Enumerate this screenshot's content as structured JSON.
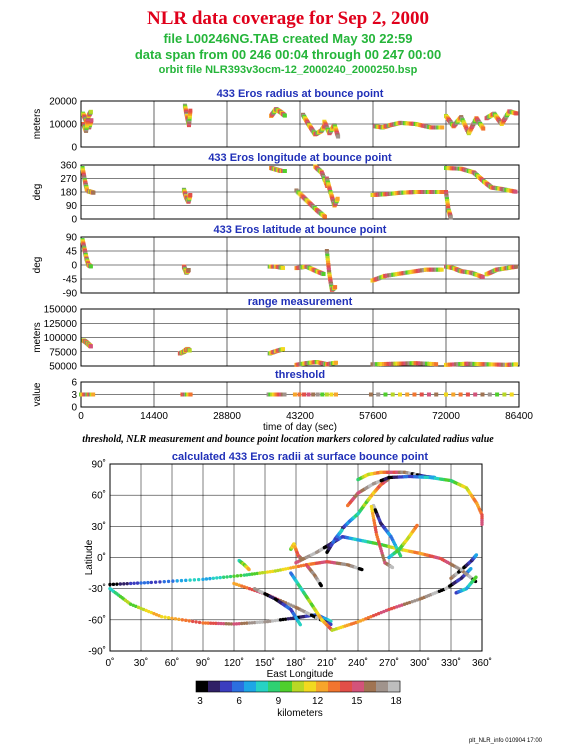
{
  "header": {
    "title": "NLR data coverage for Sep 2, 2000",
    "file_line": "file L00246NG.TAB created May 30 22:59",
    "span_line": "data span from 00 246 00:04 through 00 247 00:00",
    "orbit_line": "orbit file NLR393v3ocm-12_2000240_2000250.bsp"
  },
  "caption": "threshold, NLR measurement and bounce point location markers colored by calculated radius value",
  "footer": "plt_NLR_info 010904 17:00",
  "colors": {
    "title": "#e0001b",
    "subtitle": "#25b53a",
    "panel_title": "#2030b8"
  },
  "chart_data": [
    {
      "type": "scatter",
      "title": "433 Eros radius at bounce point",
      "ylabel": "meters",
      "xlim": [
        0,
        86400
      ],
      "ylim": [
        0,
        20000
      ],
      "yticks": [
        "20000",
        "10000",
        "0"
      ],
      "grid": true,
      "series": [
        {
          "x": [
            400,
            1000,
            1600,
            2100
          ],
          "y": [
            14500,
            11500,
            8500,
            12000
          ]
        },
        {
          "x": [
            500,
            1000,
            1500,
            2000
          ],
          "y": [
            10000,
            7000,
            13500,
            15500
          ]
        },
        {
          "x": [
            20500,
            20900,
            21300,
            21600
          ],
          "y": [
            18000,
            13500,
            9500,
            16500
          ]
        },
        {
          "x": [
            37500,
            38500,
            39500,
            40300
          ],
          "y": [
            13500,
            16500,
            15000,
            13500
          ]
        },
        {
          "x": [
            43800,
            45000,
            46200,
            47400,
            48300
          ],
          "y": [
            14000,
            9500,
            5500,
            7000,
            10000
          ]
        },
        {
          "x": [
            48000,
            49000,
            50000,
            50800
          ],
          "y": [
            11000,
            6000,
            9500,
            4000
          ]
        },
        {
          "x": [
            58000,
            59500,
            61000,
            63000,
            66000,
            69000,
            71500
          ],
          "y": [
            9000,
            8500,
            9500,
            10500,
            10000,
            8500,
            8500
          ]
        },
        {
          "x": [
            72000,
            73500,
            75000,
            76500,
            78000,
            79500
          ],
          "y": [
            13500,
            9000,
            13000,
            6000,
            12500,
            7500
          ]
        },
        {
          "x": [
            80000,
            81500,
            83000,
            84500,
            86000
          ],
          "y": [
            12500,
            14500,
            10000,
            15500,
            14500
          ]
        }
      ]
    },
    {
      "type": "scatter",
      "title": "433 Eros longitude at bounce point",
      "ylabel": "deg",
      "xlim": [
        0,
        86400
      ],
      "ylim": [
        0,
        360
      ],
      "yticks": [
        "360",
        "270",
        "180",
        "90",
        "0"
      ],
      "grid": true,
      "series": [
        {
          "x": [
            300,
            800,
            1200
          ],
          "y": [
            340,
            250,
            190
          ]
        },
        {
          "x": [
            1500,
            2000,
            2500
          ],
          "y": [
            185,
            180,
            175
          ]
        },
        {
          "x": [
            20300,
            20700,
            21200,
            21600
          ],
          "y": [
            195,
            150,
            115,
            165
          ]
        },
        {
          "x": [
            37500,
            38500,
            39500,
            40300
          ],
          "y": [
            340,
            330,
            320,
            320
          ]
        },
        {
          "x": [
            42500,
            44500,
            46500,
            48300
          ],
          "y": [
            190,
            125,
            60,
            10
          ]
        },
        {
          "x": [
            46200,
            47500,
            48700
          ],
          "y": [
            350,
            310,
            210
          ]
        },
        {
          "x": [
            48500,
            49200,
            50000,
            50700
          ],
          "y": [
            270,
            180,
            90,
            140
          ]
        },
        {
          "x": [
            57500,
            60000,
            63000,
            66000,
            69000,
            71500
          ],
          "y": [
            160,
            165,
            175,
            180,
            180,
            180
          ]
        },
        {
          "x": [
            72000,
            72500,
            73000
          ],
          "y": [
            180,
            60,
            5
          ]
        },
        {
          "x": [
            72000,
            75000,
            77500,
            79500,
            81000,
            83000,
            86000
          ],
          "y": [
            340,
            335,
            310,
            250,
            210,
            200,
            180
          ]
        }
      ]
    },
    {
      "type": "scatter",
      "title": "433 Eros latitude at bounce point",
      "ylabel": "deg",
      "xlim": [
        0,
        86400
      ],
      "ylim": [
        -90,
        90
      ],
      "yticks": [
        "90",
        "45",
        "0",
        "-45",
        "-90"
      ],
      "grid": true,
      "series": [
        {
          "x": [
            300,
            700,
            1100,
            1500,
            2000
          ],
          "y": [
            80,
            50,
            20,
            0,
            -5
          ]
        },
        {
          "x": [
            20300,
            20800,
            21300
          ],
          "y": [
            -5,
            -25,
            -15
          ]
        },
        {
          "x": [
            37200,
            38500,
            40000
          ],
          "y": [
            -5,
            -5,
            -10
          ]
        },
        {
          "x": [
            42500,
            44500,
            46500,
            48000
          ],
          "y": [
            -10,
            -5,
            -20,
            -30
          ]
        },
        {
          "x": [
            48500,
            49000,
            49500,
            50200
          ],
          "y": [
            45,
            -30,
            -80,
            -70
          ]
        },
        {
          "x": [
            57500,
            60000,
            64000,
            68000,
            71500
          ],
          "y": [
            -50,
            -35,
            -25,
            -15,
            -15
          ]
        },
        {
          "x": [
            72000,
            73500,
            75000,
            77000,
            79500
          ],
          "y": [
            -5,
            -10,
            -20,
            -25,
            -40
          ]
        },
        {
          "x": [
            80000,
            82000,
            84000,
            86000
          ],
          "y": [
            -30,
            -15,
            -10,
            -5
          ]
        }
      ]
    },
    {
      "type": "scatter",
      "title": "range measurement",
      "ylabel": "meters",
      "xlim": [
        0,
        86400
      ],
      "ylim": [
        50000,
        150000
      ],
      "yticks": [
        "150000",
        "125000",
        "100000",
        "75000",
        "50000"
      ],
      "grid": true,
      "series": [
        {
          "x": [
            500,
            1000,
            1500,
            2000
          ],
          "y": [
            95000,
            92000,
            88000,
            84000
          ]
        },
        {
          "x": [
            19500,
            20300,
            21000,
            21500
          ],
          "y": [
            72000,
            75000,
            80000,
            77000
          ]
        },
        {
          "x": [
            37200,
            38500,
            40000
          ],
          "y": [
            72000,
            76000,
            80000
          ]
        },
        {
          "x": [
            42500,
            44500,
            46500,
            48500,
            50500
          ],
          "y": [
            52000,
            55000,
            57000,
            53000,
            56000
          ]
        },
        {
          "x": [
            57500,
            62000,
            66000,
            70500
          ],
          "y": [
            53000,
            54000,
            55000,
            53000
          ]
        },
        {
          "x": [
            72000,
            76000,
            80000,
            84000,
            86000
          ],
          "y": [
            52000,
            54000,
            53000,
            52000,
            53000
          ]
        }
      ]
    },
    {
      "type": "scatter",
      "title": "threshold",
      "ylabel": "value",
      "xlabel": "time of day (sec)",
      "xlim": [
        0,
        86400
      ],
      "ylim": [
        0,
        6
      ],
      "yticks": [
        "6",
        "3",
        "0"
      ],
      "xticks": [
        "0",
        "14400",
        "28800",
        "43200",
        "57600",
        "72000",
        "86400"
      ],
      "grid": true,
      "series": [
        {
          "x": [
            0,
            1500,
            2500
          ],
          "y": [
            3,
            3,
            3
          ]
        },
        {
          "x": [
            20000,
            21800
          ],
          "y": [
            3,
            3
          ]
        },
        {
          "x": [
            37000,
            40500
          ],
          "y": [
            3,
            3
          ]
        },
        {
          "x": [
            42200,
            51200
          ],
          "y": [
            3,
            3
          ]
        },
        {
          "x": [
            57200,
            71500
          ],
          "y": [
            3,
            3
          ]
        },
        {
          "x": [
            72000,
            86400
          ],
          "y": [
            3,
            3
          ]
        }
      ]
    },
    {
      "type": "scatter",
      "title": "calculated 433 Eros radii at surface bounce point",
      "xlabel": "East Longitude",
      "ylabel": "Latitude",
      "xlim": [
        0,
        360
      ],
      "ylim": [
        -90,
        90
      ],
      "xticks": [
        "0˚",
        "30˚",
        "60˚",
        "90˚",
        "120˚",
        "150˚",
        "180˚",
        "210˚",
        "240˚",
        "270˚",
        "300˚",
        "330˚",
        "360˚"
      ],
      "yticks": [
        "90˚",
        "60˚",
        "30˚",
        "0˚",
        "-30˚",
        "-60˚",
        "-90˚"
      ],
      "grid": true,
      "series": [
        {
          "x": [
            0,
            40,
            90,
            130,
            160,
            190,
            210,
            230,
            245
          ],
          "y": [
            -26,
            -24,
            -21,
            -17,
            -13,
            -7,
            -4,
            -7,
            -12
          ]
        },
        {
          "x": [
            0,
            20,
            50,
            90,
            120,
            150,
            180,
            200,
            215
          ],
          "y": [
            -30,
            -45,
            -57,
            -63,
            -64,
            -62,
            -58,
            -55,
            -62
          ]
        },
        {
          "x": [
            120,
            150,
            180,
            200,
            215
          ],
          "y": [
            -25,
            -35,
            -48,
            -58,
            -65
          ]
        },
        {
          "x": [
            140,
            160,
            175,
            185
          ],
          "y": [
            -30,
            -40,
            -50,
            -66
          ]
        },
        {
          "x": [
            175,
            185,
            195,
            205,
            215
          ],
          "y": [
            -15,
            -30,
            -45,
            -60,
            -70
          ]
        },
        {
          "x": [
            215,
            240,
            270,
            300,
            325,
            340,
            350
          ],
          "y": [
            -70,
            -62,
            -50,
            -40,
            -30,
            -20,
            -10
          ]
        },
        {
          "x": [
            180,
            200,
            215,
            225,
            240,
            260,
            280,
            300,
            320,
            340,
            355
          ],
          "y": [
            -5,
            5,
            14,
            20,
            17,
            13,
            8,
            4,
            -1,
            -12,
            -24
          ]
        },
        {
          "x": [
            225,
            232,
            240,
            248,
            255,
            262,
            270
          ],
          "y": [
            28,
            35,
            42,
            53,
            62,
            70,
            76
          ]
        },
        {
          "x": [
            240,
            250,
            262,
            275,
            285,
            295,
            305,
            315
          ],
          "y": [
            75,
            80,
            82,
            82,
            82,
            80,
            78,
            77
          ]
        },
        {
          "x": [
            230,
            240,
            255,
            270,
            290,
            310,
            330,
            345,
            355,
            365
          ],
          "y": [
            50,
            62,
            71,
            77,
            78,
            77,
            74,
            67,
            52,
            30
          ]
        },
        {
          "x": [
            255,
            262,
            272,
            282
          ],
          "y": [
            50,
            33,
            20,
            0
          ]
        },
        {
          "x": [
            270,
            280,
            288,
            298
          ],
          "y": [
            0,
            8,
            18,
            32
          ]
        },
        {
          "x": [
            253,
            258,
            266,
            274
          ],
          "y": [
            49,
            22,
            -5,
            -10
          ]
        },
        {
          "x": [
            330,
            340,
            350,
            355
          ],
          "y": [
            -20,
            -12,
            -3,
            3
          ]
        },
        {
          "x": [
            335,
            345,
            355
          ],
          "y": [
            -34,
            -30,
            -18
          ]
        },
        {
          "x": [
            175,
            178,
            182,
            185
          ],
          "y": [
            8,
            13,
            2,
            -1
          ]
        },
        {
          "x": [
            190,
            198,
            205
          ],
          "y": [
            -7,
            -17,
            -28
          ]
        },
        {
          "x": [
            210,
            218,
            225
          ],
          "y": [
            5,
            18,
            27
          ]
        },
        {
          "x": [
            125,
            130,
            135
          ],
          "y": [
            -3,
            -7,
            -12
          ]
        }
      ]
    }
  ],
  "colorbar": {
    "ticks": [
      "3",
      "6",
      "9",
      "12",
      "15",
      "18"
    ],
    "label": "kilometers",
    "colors": [
      "#000000",
      "#302066",
      "#3b3dbf",
      "#2c6fe0",
      "#1ea6e6",
      "#27d2c4",
      "#2fd172",
      "#4fcf2c",
      "#b9d825",
      "#f2d91f",
      "#f7a52b",
      "#f2752f",
      "#e24e48",
      "#d3537a",
      "#a07453",
      "#a0938c",
      "#bdbdbd"
    ]
  }
}
